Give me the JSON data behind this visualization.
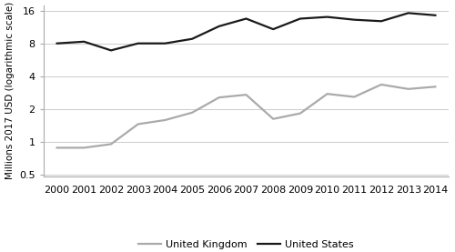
{
  "years": [
    2000,
    2001,
    2002,
    2003,
    2004,
    2005,
    2006,
    2007,
    2008,
    2009,
    2010,
    2011,
    2012,
    2013,
    2014
  ],
  "us_values": [
    8.0,
    8.3,
    6.9,
    8.0,
    8.0,
    8.8,
    11.5,
    13.5,
    10.8,
    13.5,
    14.0,
    13.2,
    12.8,
    15.2,
    14.5
  ],
  "uk_values": [
    0.88,
    0.88,
    0.95,
    1.45,
    1.58,
    1.85,
    2.55,
    2.7,
    1.62,
    1.82,
    2.75,
    2.58,
    3.35,
    3.05,
    3.2
  ],
  "us_color": "#1a1a1a",
  "uk_color": "#aaaaaa",
  "us_label": "United States",
  "uk_label": "United Kingdom",
  "ylabel": "Millions 2017 USD (logarithmic scale)",
  "yticks": [
    0.5,
    1,
    2,
    4,
    8,
    16
  ],
  "ylim": [
    0.48,
    18.0
  ],
  "xlim_left": 1999.5,
  "xlim_right": 2014.5,
  "linewidth": 1.6,
  "background_color": "#ffffff",
  "grid_color": "#cccccc",
  "spine_color": "#aaaaaa",
  "legend_fontsize": 8,
  "tick_fontsize": 8,
  "ylabel_fontsize": 7.5
}
